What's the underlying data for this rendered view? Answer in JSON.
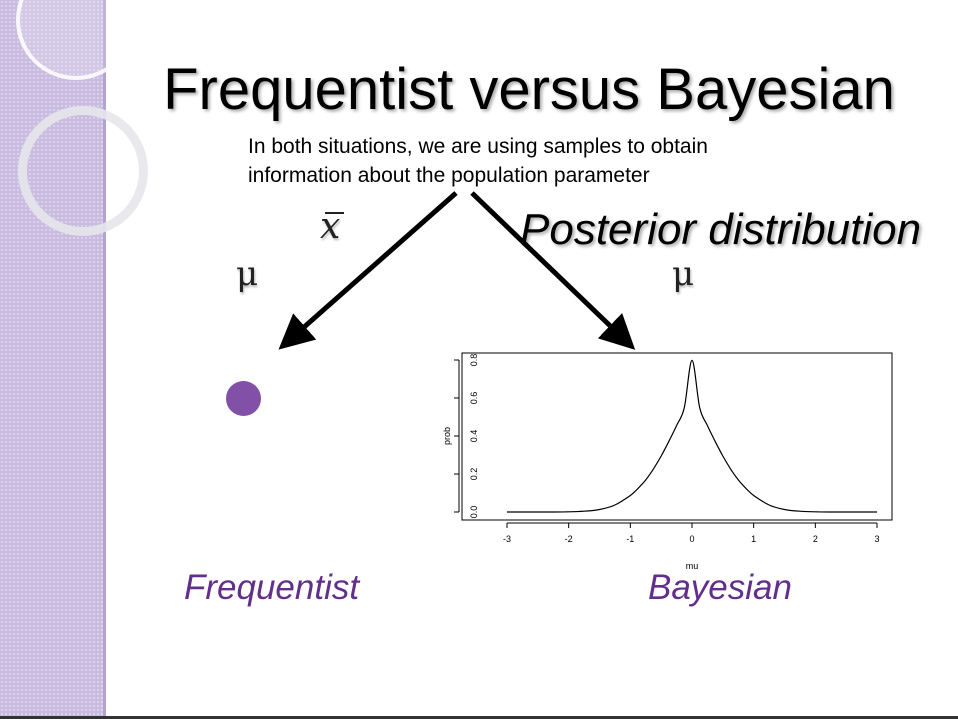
{
  "slide": {
    "title": "Frequentist versus Bayesian",
    "subtitle_line1": "In both situations, we are using samples to obtain",
    "subtitle_line2": "information about the population parameter",
    "xbar_symbol": "x",
    "posterior_label": "Posterior distribution",
    "mu_left": "μ",
    "mu_right": "μ",
    "frequentist_label": "Frequentist",
    "bayesian_label": "Bayesian",
    "point_color": "#8350a8",
    "accent_text_color": "#62308a"
  },
  "chart_data": {
    "type": "line",
    "xlabel": "mu",
    "ylabel": "prob",
    "xlim": [
      -3,
      3
    ],
    "ylim": [
      0,
      0.8
    ],
    "x_ticks": [
      -3,
      -2,
      -1,
      0,
      1,
      2,
      3
    ],
    "x_tick_labels": [
      "-3",
      "-2",
      "-1",
      "0",
      "1",
      "2",
      "3"
    ],
    "y_ticks": [
      0.0,
      0.2,
      0.4,
      0.6,
      0.8
    ],
    "y_tick_labels": [
      "0.0",
      "0.2",
      "0.4",
      "0.6",
      "0.8"
    ],
    "series": [
      {
        "x": [
          -3,
          -2.75,
          -2.5,
          -2.25,
          -2,
          -1.75,
          -1.5,
          -1.25,
          -1,
          -0.875,
          -0.75,
          -0.625,
          -0.5,
          -0.375,
          -0.25,
          -0.125,
          0,
          0.125,
          0.25,
          0.375,
          0.5,
          0.625,
          0.75,
          0.875,
          1,
          1.25,
          1.5,
          1.75,
          2,
          2.25,
          2.5,
          2.75,
          3
        ],
        "y": [
          0,
          0,
          0,
          0,
          0.001,
          0.004,
          0.013,
          0.037,
          0.087,
          0.124,
          0.169,
          0.227,
          0.295,
          0.372,
          0.455,
          0.549,
          0.798,
          0.549,
          0.455,
          0.372,
          0.295,
          0.227,
          0.169,
          0.124,
          0.087,
          0.037,
          0.013,
          0.004,
          0.001,
          0,
          0,
          0,
          0
        ]
      }
    ],
    "grid": false
  }
}
